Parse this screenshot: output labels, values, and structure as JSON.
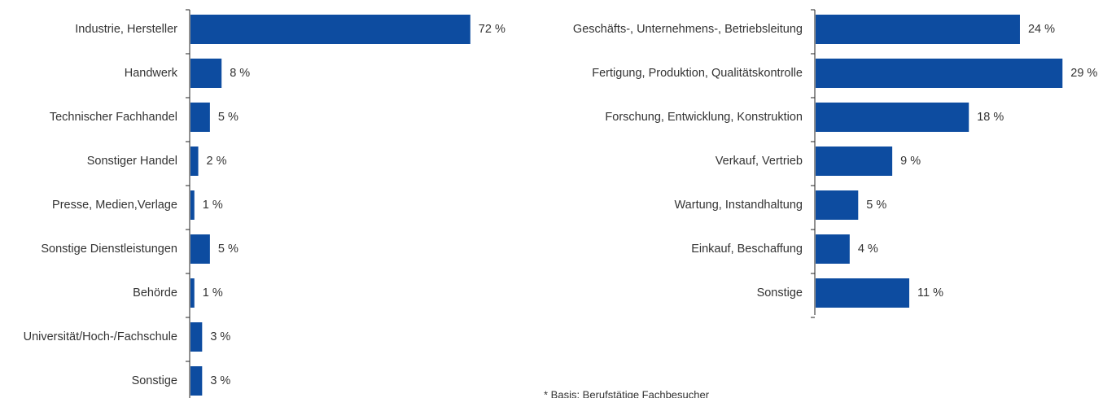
{
  "chart_data": [
    {
      "type": "bar",
      "orientation": "horizontal",
      "color": "#0d4ca0",
      "categories": [
        "Industrie, Hersteller",
        "Handwerk",
        "Technischer Fachhandel",
        "Sonstiger Handel",
        "Presse, Medien,Verlage",
        "Sonstige Dienstleistungen",
        "Behörde",
        "Universität/Hoch-/Fachschule",
        "Sonstige"
      ],
      "values": [
        72,
        8,
        5,
        2,
        1,
        5,
        1,
        3,
        3
      ],
      "value_labels": [
        "72 %",
        "8 %",
        "5 %",
        "2 %",
        "1 %",
        "5 %",
        "1 %",
        "3 %",
        "3 %"
      ],
      "xlim": [
        0,
        80
      ]
    },
    {
      "type": "bar",
      "orientation": "horizontal",
      "color": "#0d4ca0",
      "categories": [
        "Geschäfts-, Unternehmens-, Betriebsleitung",
        "Fertigung, Produktion, Qualitätskontrolle",
        "Forschung, Entwicklung, Konstruktion",
        "Verkauf, Vertrieb",
        "Wartung, Instandhaltung",
        "Einkauf, Beschaffung",
        "Sonstige"
      ],
      "values": [
        24,
        29,
        18,
        9,
        5,
        4,
        11
      ],
      "value_labels": [
        "24 %",
        "29 %",
        "18 %",
        "9 %",
        "5 %",
        "4 %",
        "11 %"
      ],
      "xlim": [
        0,
        35
      ]
    }
  ],
  "footnote": "* Basis: Berufstätige Fachbesucher"
}
